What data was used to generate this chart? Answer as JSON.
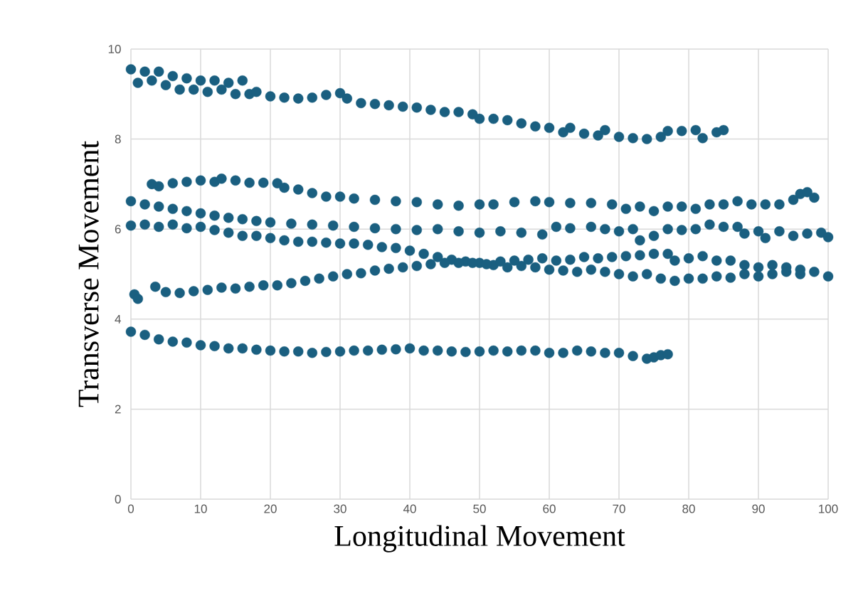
{
  "chart_data": {
    "type": "scatter",
    "xlabel": "Longitudinal Movement",
    "ylabel": "Transverse Movement",
    "xlim": [
      0,
      100
    ],
    "ylim": [
      0,
      10
    ],
    "xticks": [
      0,
      10,
      20,
      30,
      40,
      50,
      60,
      70,
      80,
      90,
      100
    ],
    "yticks": [
      0,
      2,
      4,
      6,
      8,
      10
    ],
    "grid": true,
    "marker": "circle",
    "series": [
      {
        "color": "#1a5f80",
        "x": [
          0,
          1,
          2,
          3,
          4,
          5,
          6,
          7,
          8,
          9,
          10,
          11,
          12,
          13,
          14,
          15,
          16,
          17,
          18,
          20,
          22,
          24,
          26,
          28,
          30,
          31,
          33,
          35,
          37,
          39,
          41,
          43,
          45,
          47,
          49,
          50,
          52,
          54,
          56,
          58,
          60,
          62,
          63,
          65,
          67,
          68,
          70,
          72,
          74,
          76,
          77,
          79,
          81,
          82,
          84,
          85
        ],
        "values": [
          9.55,
          9.25,
          9.5,
          9.3,
          9.5,
          9.2,
          9.4,
          9.1,
          9.35,
          9.1,
          9.3,
          9.05,
          9.3,
          9.1,
          9.25,
          9.0,
          9.3,
          9.0,
          9.05,
          8.95,
          8.92,
          8.9,
          8.92,
          8.98,
          9.02,
          8.9,
          8.8,
          8.78,
          8.75,
          8.72,
          8.7,
          8.65,
          8.6,
          8.6,
          8.55,
          8.45,
          8.45,
          8.42,
          8.35,
          8.28,
          8.25,
          8.15,
          8.25,
          8.12,
          8.08,
          8.2,
          8.05,
          8.02,
          8.0,
          8.05,
          8.18,
          8.18,
          8.2,
          8.02,
          8.15,
          8.2
        ]
      },
      {
        "color": "#1a5f80",
        "x": [
          3,
          4,
          6,
          8,
          10,
          12,
          13,
          15,
          17,
          19,
          21,
          22,
          24,
          26,
          28,
          30,
          32,
          35,
          38,
          41,
          44,
          47,
          50,
          52,
          55,
          58,
          60,
          63,
          66,
          69,
          71,
          73,
          75,
          77,
          79,
          81,
          83,
          85,
          87,
          89,
          91,
          93,
          95,
          96,
          97,
          98
        ],
        "values": [
          7.0,
          6.95,
          7.02,
          7.05,
          7.08,
          7.05,
          7.12,
          7.08,
          7.03,
          7.03,
          7.02,
          6.92,
          6.88,
          6.8,
          6.72,
          6.72,
          6.68,
          6.65,
          6.62,
          6.6,
          6.55,
          6.52,
          6.55,
          6.55,
          6.6,
          6.62,
          6.6,
          6.58,
          6.58,
          6.55,
          6.45,
          6.5,
          6.4,
          6.5,
          6.5,
          6.45,
          6.55,
          6.55,
          6.62,
          6.55,
          6.55,
          6.55,
          6.65,
          6.78,
          6.82,
          6.7
        ]
      },
      {
        "color": "#1a5f80",
        "x": [
          0,
          2,
          4,
          6,
          8,
          10,
          12,
          14,
          16,
          18,
          20,
          23,
          26,
          29,
          32,
          35,
          38,
          41,
          44,
          47,
          50,
          53,
          56,
          59,
          61,
          63,
          66,
          68,
          70,
          72,
          73,
          75,
          77,
          79,
          81,
          83,
          85,
          87,
          88,
          90,
          91,
          93,
          95,
          97,
          99,
          100
        ],
        "values": [
          6.62,
          6.55,
          6.5,
          6.45,
          6.4,
          6.35,
          6.3,
          6.25,
          6.22,
          6.18,
          6.15,
          6.12,
          6.1,
          6.08,
          6.05,
          6.02,
          6.0,
          5.98,
          6.0,
          5.95,
          5.92,
          5.95,
          5.92,
          5.88,
          6.05,
          6.02,
          6.05,
          6.0,
          5.95,
          6.0,
          5.75,
          5.85,
          6.0,
          5.98,
          6.0,
          6.1,
          6.05,
          6.05,
          5.9,
          5.95,
          5.8,
          5.95,
          5.85,
          5.9,
          5.92,
          5.82
        ]
      },
      {
        "color": "#1a5f80",
        "x": [
          0,
          2,
          4,
          6,
          8,
          10,
          12,
          14,
          16,
          18,
          20,
          22,
          24,
          26,
          28,
          30,
          32,
          34,
          36,
          38,
          40,
          42,
          44,
          46,
          48,
          50,
          52,
          54,
          56,
          58,
          60,
          62,
          64,
          66,
          68,
          70,
          72,
          74,
          76,
          78,
          80,
          82,
          84,
          86,
          88,
          90,
          92,
          94,
          96,
          100
        ],
        "values": [
          6.08,
          6.1,
          6.05,
          6.1,
          6.02,
          6.05,
          5.98,
          5.92,
          5.85,
          5.85,
          5.8,
          5.75,
          5.72,
          5.72,
          5.7,
          5.68,
          5.68,
          5.65,
          5.6,
          5.58,
          5.52,
          5.45,
          5.38,
          5.32,
          5.28,
          5.25,
          5.2,
          5.15,
          5.18,
          5.15,
          5.1,
          5.08,
          5.05,
          5.1,
          5.05,
          5.0,
          4.95,
          5.0,
          4.9,
          4.85,
          4.9,
          4.9,
          4.95,
          4.92,
          5.0,
          4.95,
          5.0,
          5.05,
          5.0,
          4.95
        ]
      },
      {
        "color": "#1a5f80",
        "x": [
          0.5,
          1,
          3.5,
          5,
          7,
          9,
          11,
          13,
          15,
          17,
          19,
          21,
          23,
          25,
          27,
          29,
          31,
          33,
          35,
          37,
          39,
          41,
          43,
          45,
          47,
          49,
          51,
          53,
          55,
          57,
          59,
          61,
          63,
          65,
          67,
          69,
          71,
          73,
          75,
          77,
          78,
          80,
          82,
          84,
          86,
          88,
          90,
          92,
          94,
          96,
          98
        ],
        "values": [
          4.55,
          4.45,
          4.72,
          4.6,
          4.58,
          4.62,
          4.65,
          4.7,
          4.68,
          4.72,
          4.75,
          4.75,
          4.8,
          4.85,
          4.9,
          4.95,
          5.0,
          5.02,
          5.08,
          5.12,
          5.15,
          5.18,
          5.22,
          5.25,
          5.25,
          5.25,
          5.22,
          5.28,
          5.3,
          5.32,
          5.35,
          5.3,
          5.32,
          5.38,
          5.35,
          5.38,
          5.4,
          5.42,
          5.45,
          5.45,
          5.3,
          5.35,
          5.4,
          5.3,
          5.3,
          5.2,
          5.15,
          5.2,
          5.15,
          5.1,
          5.05
        ]
      },
      {
        "color": "#1a5f80",
        "x": [
          0,
          2,
          4,
          6,
          8,
          10,
          12,
          14,
          16,
          18,
          20,
          22,
          24,
          26,
          28,
          30,
          32,
          34,
          36,
          38,
          40,
          42,
          44,
          46,
          48,
          50,
          52,
          54,
          56,
          58,
          60,
          62,
          64,
          66,
          68,
          70,
          72,
          74,
          75,
          76,
          77
        ],
        "values": [
          3.72,
          3.65,
          3.55,
          3.5,
          3.48,
          3.42,
          3.4,
          3.35,
          3.35,
          3.32,
          3.3,
          3.28,
          3.28,
          3.25,
          3.27,
          3.28,
          3.3,
          3.3,
          3.32,
          3.33,
          3.35,
          3.3,
          3.3,
          3.28,
          3.27,
          3.28,
          3.3,
          3.28,
          3.3,
          3.3,
          3.25,
          3.25,
          3.3,
          3.28,
          3.25,
          3.25,
          3.18,
          3.12,
          3.15,
          3.2,
          3.22
        ]
      }
    ]
  }
}
